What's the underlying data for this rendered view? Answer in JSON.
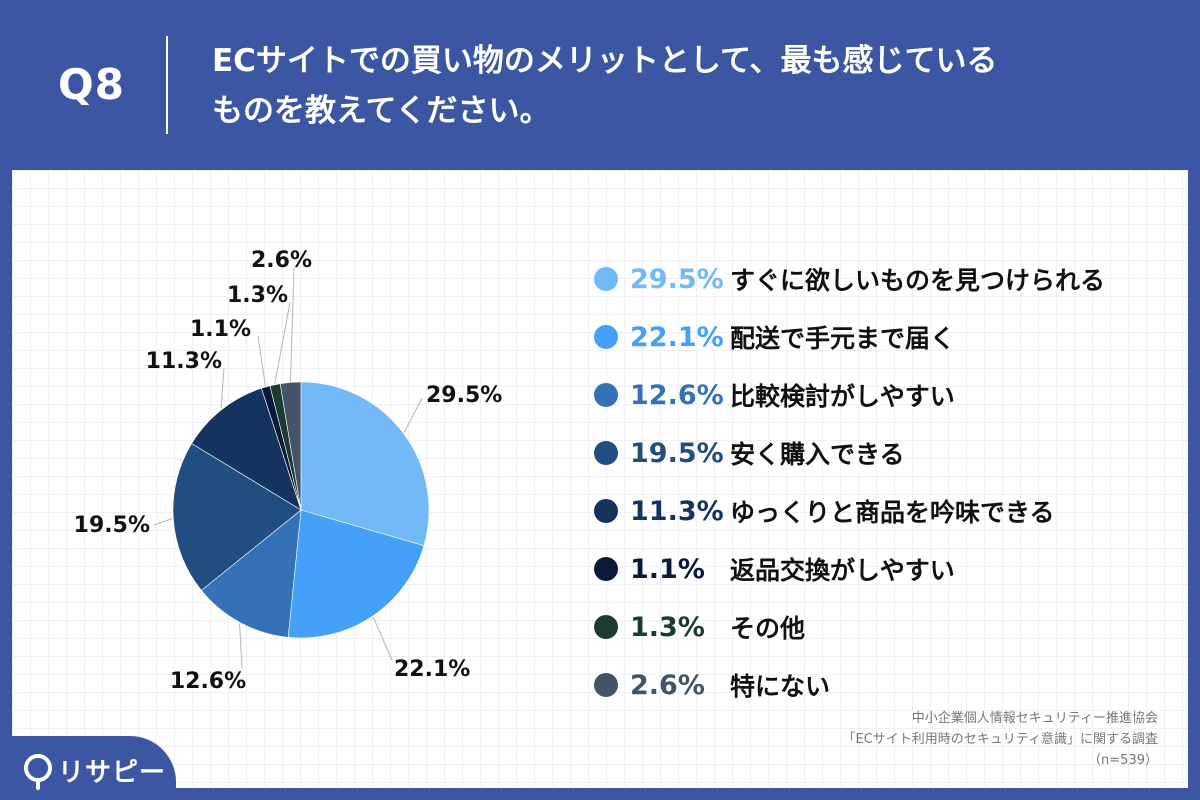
{
  "header": {
    "q_label": "Q8",
    "title_line1": "ECサイトでの買い物のメリットとして、最も感じている",
    "title_line2": "ものを教えてください。"
  },
  "chart_data": {
    "type": "pie",
    "start": "12 o'clock",
    "direction": "clockwise",
    "slices": [
      {
        "label": "すぐに欲しいものを見つけられる",
        "value": 29.5,
        "value_label": "29.5%",
        "color": "#72b9f7"
      },
      {
        "label": "配送で手元まで届く",
        "value": 22.1,
        "value_label": "22.1%",
        "color": "#45a0f8"
      },
      {
        "label": "比較検討がしやすい",
        "value": 12.6,
        "value_label": "12.6%",
        "color": "#3571b7"
      },
      {
        "label": "安く購入できる",
        "value": 19.5,
        "value_label": "19.5%",
        "color": "#214d80"
      },
      {
        "label": "ゆっくりと商品を吟味できる",
        "value": 11.3,
        "value_label": "11.3%",
        "color": "#15335f"
      },
      {
        "label": "返品交換がしやすい",
        "value": 1.1,
        "value_label": "1.1%",
        "color": "#0b1a3b"
      },
      {
        "label": "その他",
        "value": 1.3,
        "value_label": "1.3%",
        "color": "#1c3b33"
      },
      {
        "label": "特にない",
        "value": 2.6,
        "value_label": "2.6%",
        "color": "#435469"
      }
    ]
  },
  "source": {
    "line1": "中小企業個人情報セキュリティー推進協会",
    "line2": "「ECサイト利用時のセキュリティ意識」に関する調査",
    "line3": "（n=539）"
  },
  "logo": {
    "text": "リサピー"
  }
}
